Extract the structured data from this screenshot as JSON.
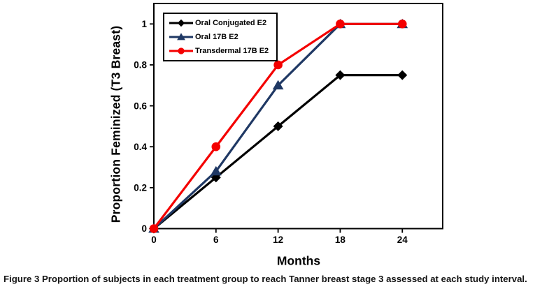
{
  "figure": {
    "caption_prefix": "Figure 3",
    "caption_text": "Proportion of subjects in each treatment group to reach Tanner breast stage 3 assessed at each study interval."
  },
  "chart_data": {
    "type": "line",
    "title": "",
    "xlabel": "Months",
    "ylabel": "Proportion Feminized (T3 Breast)",
    "x": [
      0,
      6,
      12,
      18,
      24
    ],
    "xticks": [
      0,
      6,
      12,
      18,
      24
    ],
    "yticks": [
      0,
      0.2,
      0.4,
      0.6,
      0.8,
      1
    ],
    "xlim": [
      0,
      27.9
    ],
    "ylim": [
      0,
      1.1
    ],
    "grid": false,
    "legend_position": "top-left",
    "axis_color": "#000000",
    "series": [
      {
        "name": "Oral Conjugated E2",
        "color": "#000000",
        "marker": "diamond",
        "values": [
          0,
          0.25,
          0.5,
          0.75,
          0.75
        ]
      },
      {
        "name": "Oral 17B E2",
        "color": "#1F3864",
        "marker": "triangle",
        "values": [
          0,
          0.28,
          0.7,
          1,
          1
        ]
      },
      {
        "name": "Transdermal 17B E2",
        "color": "#F40000",
        "marker": "circle",
        "values": [
          0,
          0.4,
          0.8,
          1,
          1
        ]
      }
    ]
  }
}
